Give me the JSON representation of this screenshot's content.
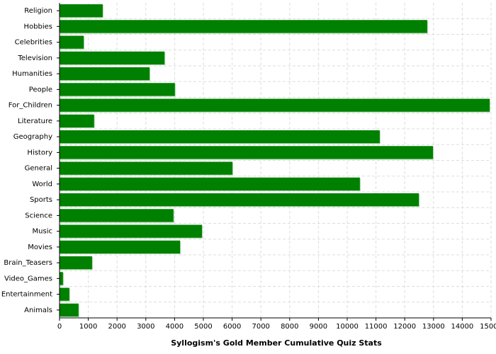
{
  "chart_data": {
    "type": "hbar",
    "title": "Syllogism's Gold Member Cumulative Quiz Stats",
    "categories": [
      "Religion",
      "Hobbies",
      "Celebrities",
      "Television",
      "Humanities",
      "People",
      "For_Children",
      "Literature",
      "Geography",
      "History",
      "General",
      "World",
      "Sports",
      "Science",
      "Music",
      "Movies",
      "Brain_Teasers",
      "Video_Games",
      "Entertainment",
      "Animals"
    ],
    "values": [
      1500,
      12780,
      840,
      3650,
      3130,
      4010,
      14950,
      1200,
      11130,
      12980,
      6010,
      10440,
      12490,
      3960,
      4950,
      4190,
      1130,
      120,
      340,
      660
    ],
    "color": "#008000",
    "xlim": [
      0,
      15000
    ],
    "xticks": [
      0,
      1000,
      2000,
      3000,
      4000,
      5000,
      6000,
      7000,
      8000,
      9000,
      10000,
      11000,
      12000,
      13000,
      14000,
      15000
    ],
    "grid": true
  }
}
